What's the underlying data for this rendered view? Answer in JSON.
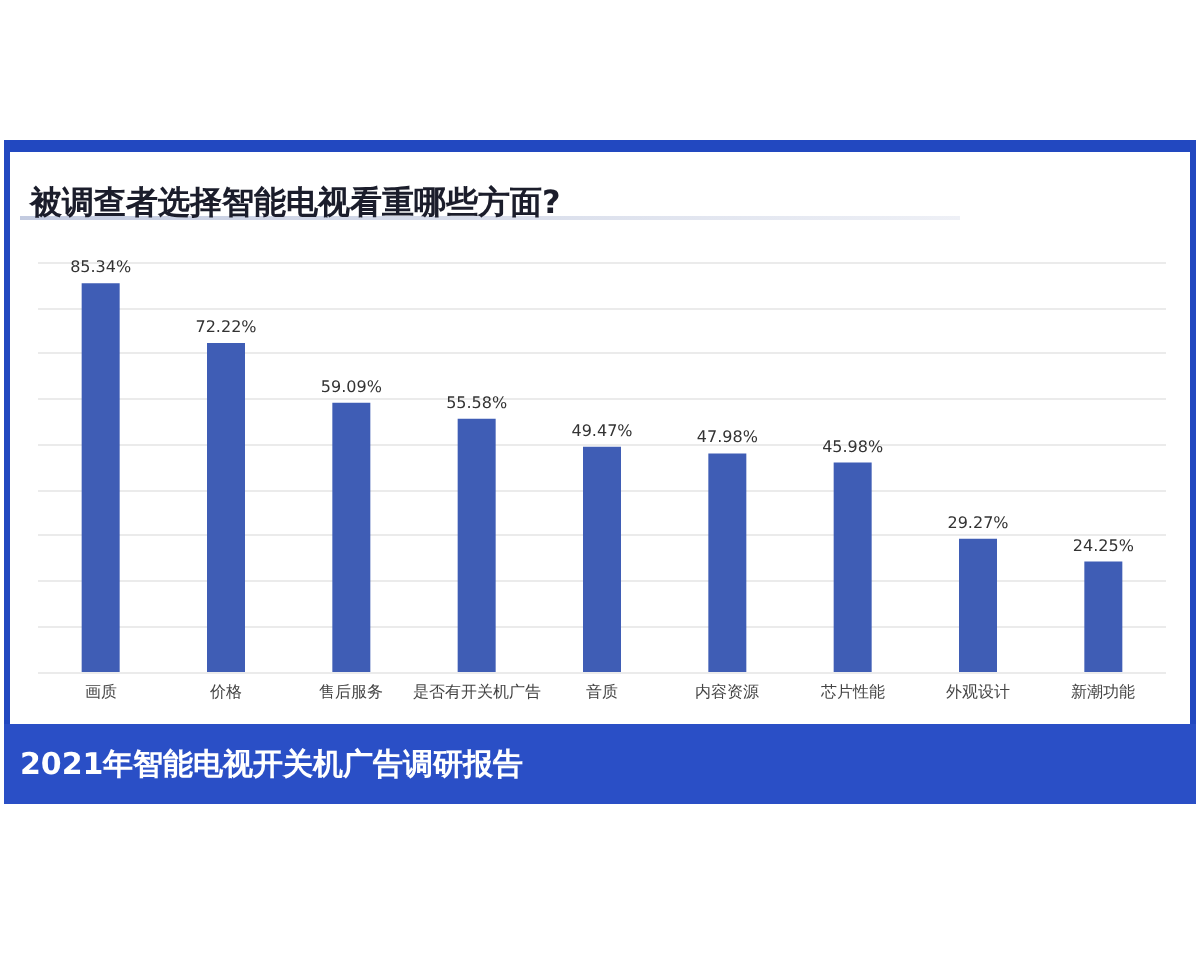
{
  "chart_data": {
    "type": "bar",
    "title": "被调查者选择智能电视看重哪些方面?",
    "categories": [
      "画质",
      "价格",
      "售后服务",
      "是否有开关机广告",
      "音质",
      "内容资源",
      "芯片性能",
      "外观设计",
      "新潮功能"
    ],
    "values": [
      85.34,
      72.22,
      59.09,
      55.58,
      49.47,
      47.98,
      45.98,
      29.27,
      24.25
    ],
    "value_labels": [
      "85.34%",
      "72.22%",
      "59.09%",
      "55.58%",
      "49.47%",
      "47.98%",
      "45.98%",
      "29.27%",
      "24.25%"
    ],
    "color": "#3f5db5",
    "ylim": [
      0,
      90
    ],
    "yticks": [
      {
        "value": 0,
        "label": null
      },
      {
        "value": 10,
        "label": null
      },
      {
        "value": 20,
        "label": null
      },
      {
        "value": 30,
        "label": null
      },
      {
        "value": 40,
        "label": null
      },
      {
        "value": 50,
        "label": null
      },
      {
        "value": 60,
        "label": null
      },
      {
        "value": 70,
        "label": null
      },
      {
        "value": 80,
        "label": null
      },
      {
        "value": 90,
        "label": null
      }
    ],
    "grid": "y",
    "tick_labels": "x",
    "annotations": [
      "2021年智能电视开关机广告调研报告"
    ]
  }
}
